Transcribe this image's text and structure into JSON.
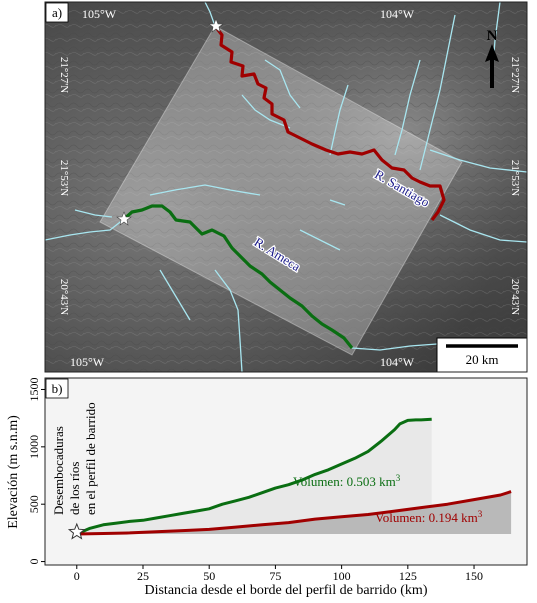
{
  "panel_a": {
    "label": "a)",
    "lon_labels": {
      "top_left": "105°W",
      "top_right": "104°W",
      "bottom_left": "105°W",
      "bottom_right": "104°W"
    },
    "lat_labels": {
      "upper": "21°27'N",
      "middle": "21°53'N",
      "lower": "20°43'N"
    },
    "north_arrow": "N",
    "scale_bar": "20 km",
    "rivers": [
      {
        "name": "R. Santiago",
        "color": "#a00000"
      },
      {
        "name": "R. Ameca",
        "color": "#0a6e12"
      }
    ],
    "colors": {
      "tributaries": "#a8e6f0",
      "swath": "#ffffff"
    }
  },
  "panel_b": {
    "label": "b)",
    "annotation": "Desembocaduras de los ríos en el perfil de barrido",
    "annotation_lines": [
      "Desembocaduras",
      "de los ríos",
      "en el perfil de barrido"
    ]
  },
  "chart_data": {
    "type": "area",
    "xlabel": "Distancia desde el borde del perfil de barrido (km)",
    "ylabel": "Elevación (m s.n.m)",
    "xlim": [
      -12,
      170
    ],
    "ylim": [
      -30,
      1600
    ],
    "xticks": [
      0,
      25,
      50,
      75,
      100,
      125,
      150
    ],
    "yticks": [
      0,
      500,
      1000,
      1500
    ],
    "base_elevation": 240,
    "series": [
      {
        "name": "R. Ameca",
        "label": "Volumen: 0.503 km",
        "color": "#0a6e12",
        "fill": "#e8e8e8",
        "x": [
          0,
          5,
          10,
          15,
          20,
          25,
          30,
          35,
          40,
          45,
          50,
          55,
          60,
          65,
          70,
          75,
          80,
          85,
          90,
          95,
          100,
          105,
          110,
          115,
          120,
          122,
          125,
          128,
          130,
          134
        ],
        "y": [
          240,
          290,
          320,
          335,
          350,
          360,
          380,
          400,
          420,
          440,
          460,
          500,
          530,
          560,
          600,
          640,
          670,
          710,
          760,
          800,
          850,
          900,
          960,
          1050,
          1150,
          1200,
          1230,
          1235,
          1235,
          1240
        ]
      },
      {
        "name": "R. Santiago",
        "label": "Volumen: 0.194 km",
        "color": "#a00000",
        "fill": "#b9b9b9",
        "x": [
          0,
          10,
          20,
          30,
          40,
          50,
          60,
          70,
          80,
          90,
          100,
          110,
          120,
          130,
          140,
          150,
          160,
          164
        ],
        "y": [
          240,
          245,
          250,
          260,
          270,
          280,
          300,
          320,
          340,
          370,
          390,
          410,
          440,
          470,
          500,
          540,
          580,
          610
        ]
      }
    ]
  }
}
